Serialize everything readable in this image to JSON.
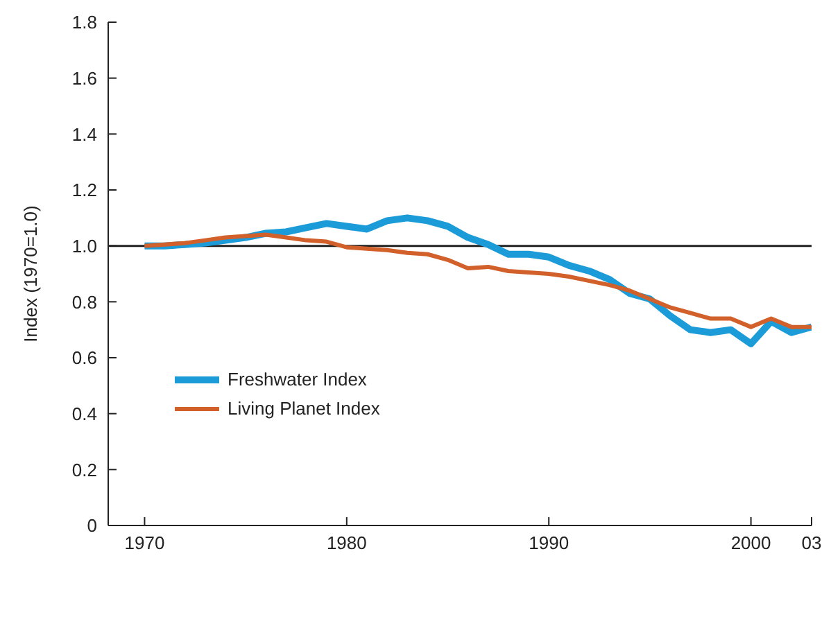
{
  "chart_data": {
    "type": "line",
    "ylabel": "Index (1970=1.0)",
    "x": [
      1970,
      1971,
      1972,
      1973,
      1974,
      1975,
      1976,
      1977,
      1978,
      1979,
      1980,
      1981,
      1982,
      1983,
      1984,
      1985,
      1986,
      1987,
      1988,
      1989,
      1990,
      1991,
      1992,
      1993,
      1994,
      1995,
      1996,
      1997,
      1998,
      1999,
      2000,
      2001,
      2002,
      2003
    ],
    "series": [
      {
        "name": "Freshwater Index",
        "color": "#1b9bd7",
        "values": [
          1.0,
          1.0,
          1.005,
          1.01,
          1.02,
          1.03,
          1.045,
          1.05,
          1.065,
          1.08,
          1.07,
          1.06,
          1.09,
          1.1,
          1.09,
          1.07,
          1.03,
          1.005,
          0.97,
          0.97,
          0.96,
          0.93,
          0.91,
          0.88,
          0.83,
          0.81,
          0.75,
          0.7,
          0.69,
          0.7,
          0.65,
          0.73,
          0.69,
          0.71
        ]
      },
      {
        "name": "Living Planet Index",
        "color": "#d2602a",
        "values": [
          1.0,
          1.005,
          1.01,
          1.02,
          1.03,
          1.035,
          1.04,
          1.03,
          1.02,
          1.015,
          0.995,
          0.99,
          0.985,
          0.975,
          0.97,
          0.95,
          0.92,
          0.925,
          0.91,
          0.905,
          0.9,
          0.89,
          0.875,
          0.86,
          0.84,
          0.81,
          0.78,
          0.76,
          0.74,
          0.74,
          0.71,
          0.74,
          0.71,
          0.71
        ]
      }
    ],
    "xlim": [
      1968.2,
      2003
    ],
    "xticks": [
      1970,
      1980,
      1990,
      2000,
      {
        "value": 2003,
        "label": "03"
      }
    ],
    "ylim": [
      0,
      1.8
    ],
    "yticks": [
      0,
      0.2,
      0.4,
      0.6,
      0.8,
      {
        "value": 1,
        "label": "1.0"
      },
      1.2,
      1.4,
      1.6,
      1.8
    ],
    "ref_lines": [
      {
        "axis": "y",
        "value": 1,
        "color": "#222222"
      }
    ],
    "grid": false,
    "legend": "left"
  }
}
